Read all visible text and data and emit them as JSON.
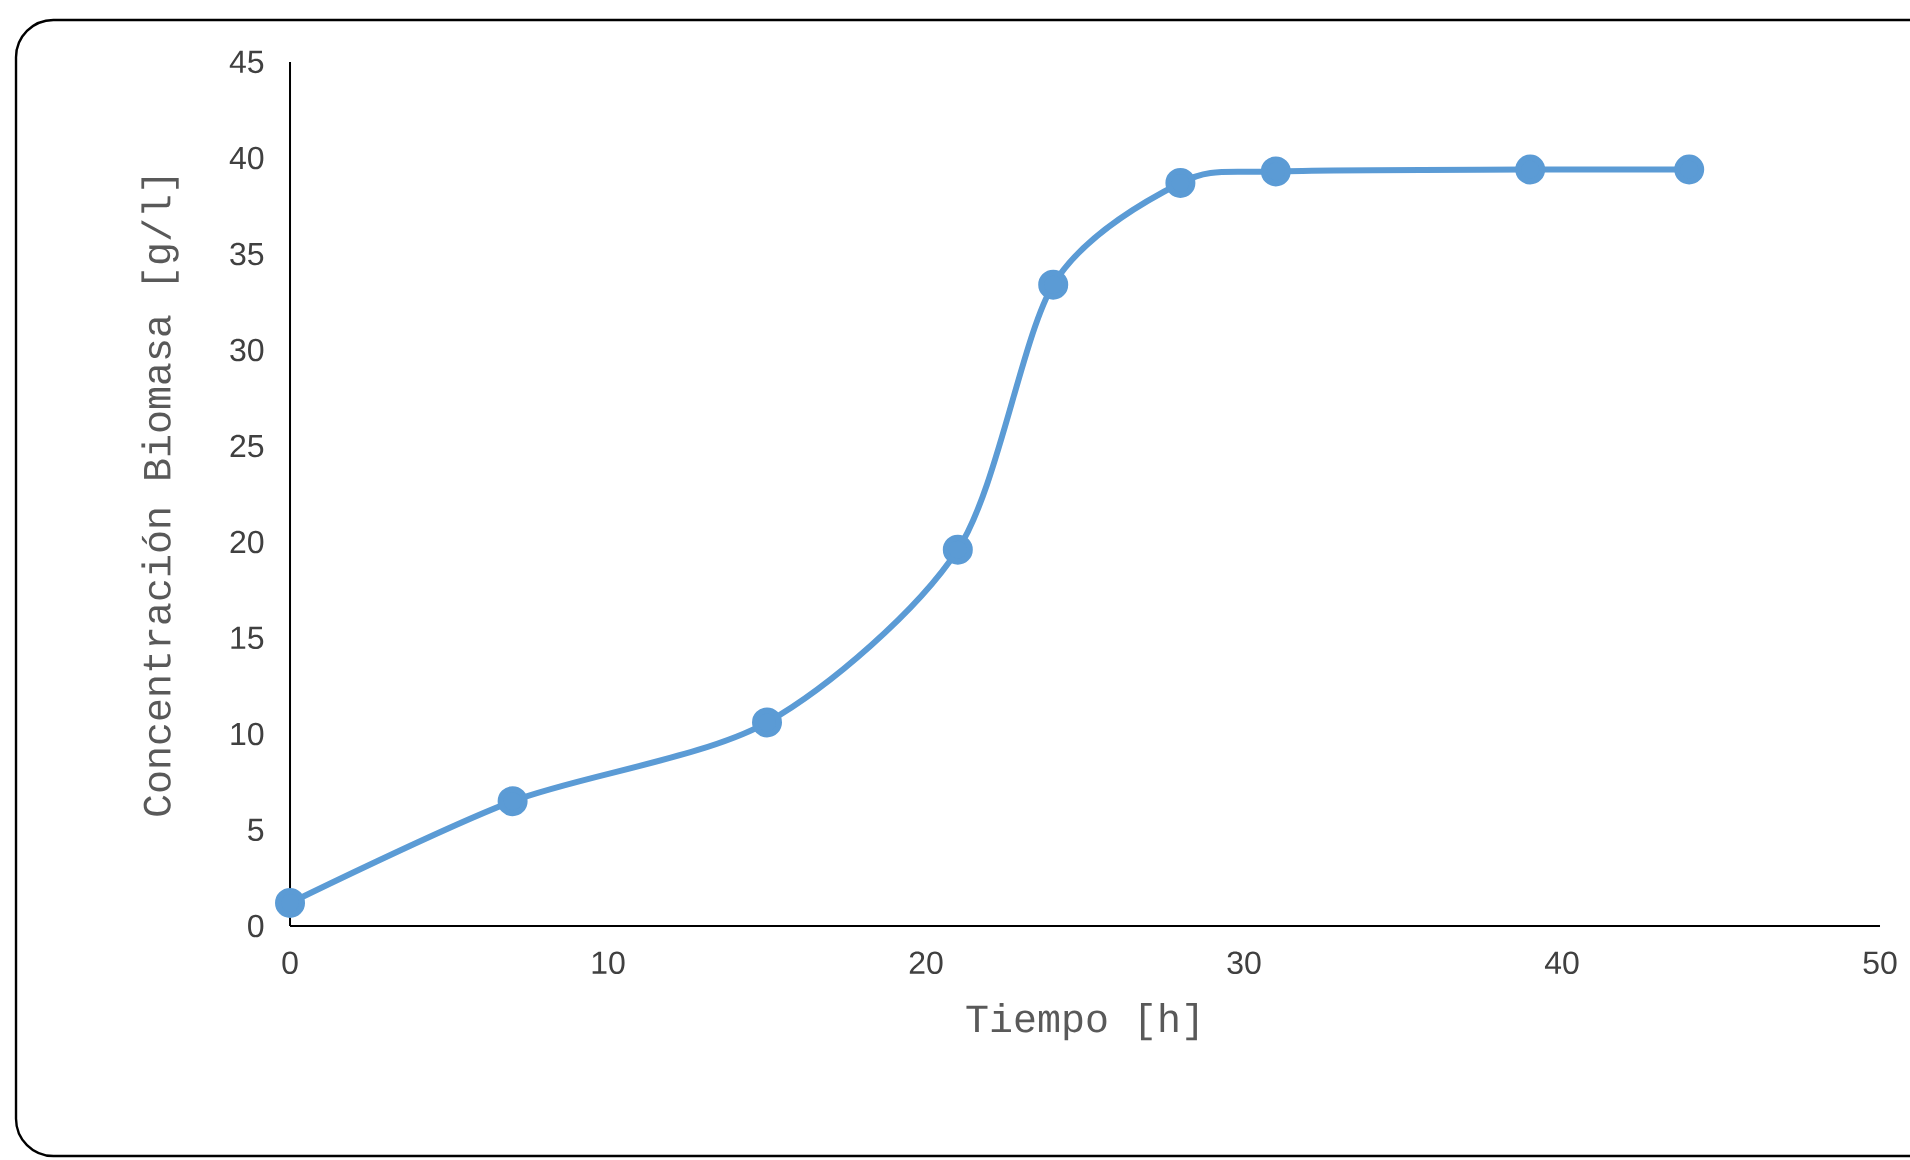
{
  "chart_data": {
    "type": "line",
    "xlabel": "Tiempo [h]",
    "ylabel": "Concentración Biomasa [g/l]",
    "x": [
      0,
      7,
      15,
      21,
      24,
      28,
      31,
      39,
      44
    ],
    "series": [
      {
        "color": "#5b9bd5",
        "values": [
          1.2,
          6.5,
          10.6,
          19.6,
          33.4,
          38.7,
          39.3,
          39.4,
          39.4
        ]
      }
    ],
    "xlim": [
      0,
      50
    ],
    "ylim": [
      0,
      45
    ],
    "xticks": [
      0,
      10,
      20,
      30,
      40,
      50
    ],
    "yticks": [
      0,
      5,
      10,
      15,
      20,
      25,
      30,
      35,
      40,
      45
    ],
    "grid": false,
    "marker": "circle",
    "line_style": "solid"
  }
}
